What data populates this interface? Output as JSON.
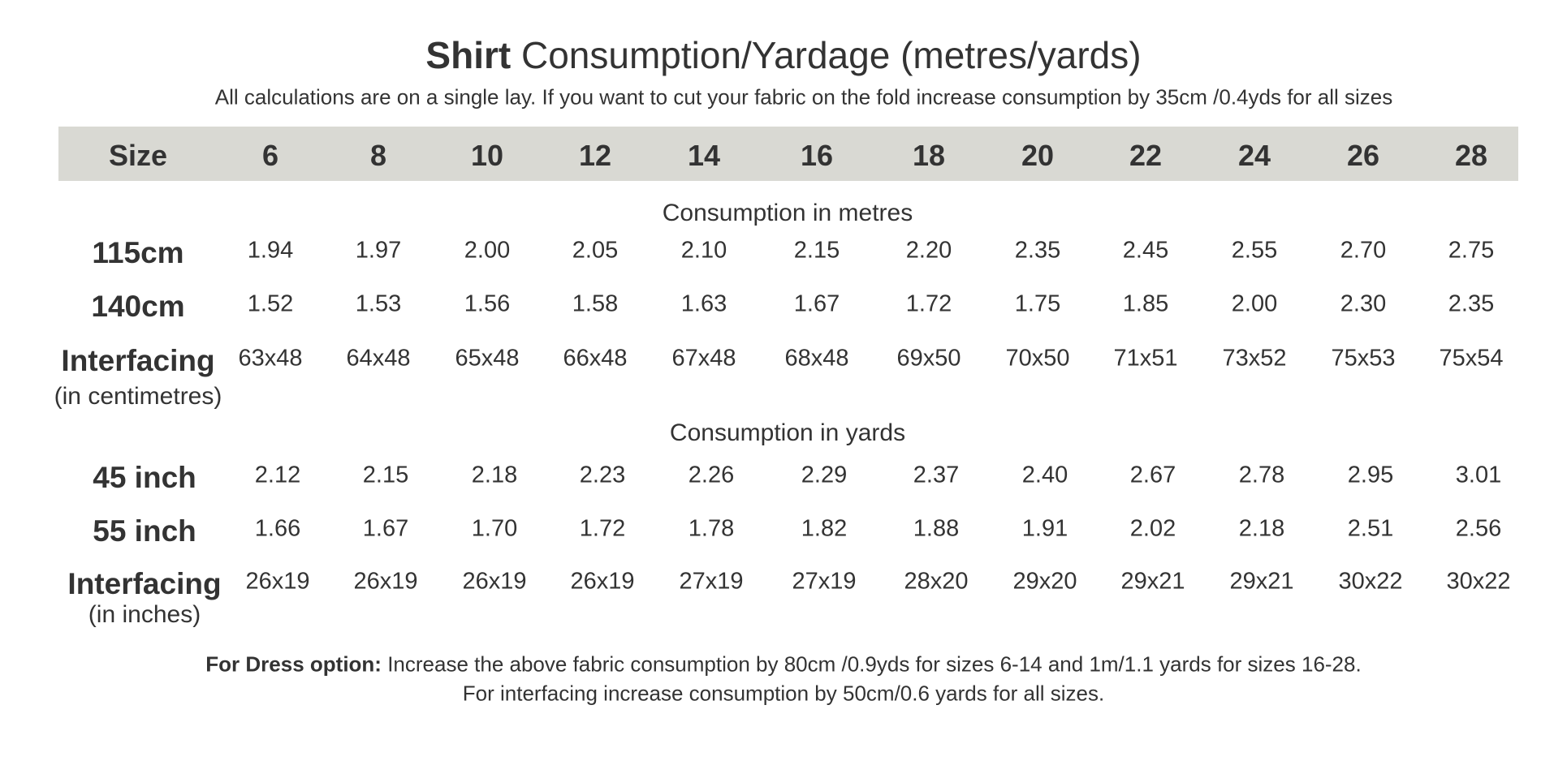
{
  "title": {
    "bold": "Shirt",
    "rest": "Consumption/Yardage (metres/yards)"
  },
  "subtitle": "All calculations are on a single lay. If you want to cut your fabric on the fold increase consumption by 35cm /0.4yds for all sizes",
  "header": [
    "Size",
    "6",
    "8",
    "10",
    "12",
    "14",
    "16",
    "18",
    "20",
    "22",
    "24",
    "26",
    "28"
  ],
  "sections": [
    {
      "heading": "Consumption in metres",
      "rows": [
        {
          "label": "115cm",
          "values": [
            "1.94",
            "1.97",
            "2.00",
            "2.05",
            "2.10",
            "2.15",
            "2.20",
            "2.35",
            "2.45",
            "2.55",
            "2.70",
            "2.75"
          ]
        },
        {
          "label": "140cm",
          "values": [
            "1.52",
            "1.53",
            "1.56",
            "1.58",
            "1.63",
            "1.67",
            "1.72",
            "1.75",
            "1.85",
            "2.00",
            "2.30",
            "2.35"
          ]
        },
        {
          "label": "Interfacing",
          "sublabel": "(in centimetres)",
          "values": [
            "63x48",
            "64x48",
            "65x48",
            "66x48",
            "67x48",
            "68x48",
            "69x50",
            "70x50",
            "71x51",
            "73x52",
            "75x53",
            "75x54"
          ]
        }
      ]
    },
    {
      "heading": "Consumption in yards",
      "rows": [
        {
          "label": "45 inch",
          "values": [
            "2.12",
            "2.15",
            "2.18",
            "2.23",
            "2.26",
            "2.29",
            "2.37",
            "2.40",
            "2.67",
            "2.78",
            "2.95",
            "3.01"
          ]
        },
        {
          "label": "55 inch",
          "values": [
            "1.66",
            "1.67",
            "1.70",
            "1.72",
            "1.78",
            "1.82",
            "1.88",
            "1.91",
            "2.02",
            "2.18",
            "2.51",
            "2.56"
          ]
        },
        {
          "label": "Interfacing",
          "sublabel": "(in inches)",
          "values": [
            "26x19",
            "26x19",
            "26x19",
            "26x19",
            "27x19",
            "27x19",
            "28x20",
            "29x20",
            "29x21",
            "29x21",
            "30x22",
            "30x22"
          ]
        }
      ]
    }
  ],
  "footer": {
    "bold": "For Dress option:",
    "line1": "Increase the above fabric consumption by 80cm /0.9yds for sizes 6-14 and 1m/1.1 yards for sizes 16-28.",
    "line2": "For interfacing increase consumption by 50cm/0.6 yards for all sizes."
  }
}
